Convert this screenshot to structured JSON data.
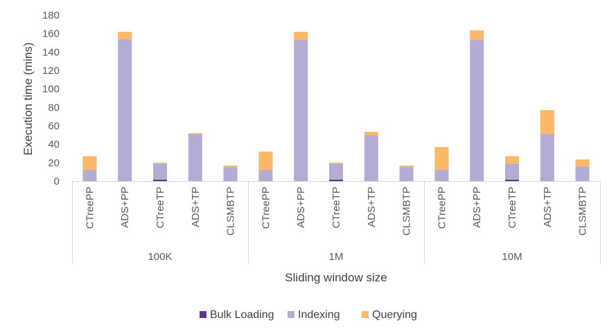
{
  "chart_data": {
    "type": "bar",
    "stacked": true,
    "ylabel": "Execution time (mins)",
    "xlabel": "Sliding window size",
    "ylim": [
      0,
      180
    ],
    "yticks": [
      0,
      20,
      40,
      60,
      80,
      100,
      120,
      140,
      160,
      180
    ],
    "grid": false,
    "legend_position": "bottom",
    "groups": [
      "100K",
      "1M",
      "10M"
    ],
    "categories": [
      "CTreePP",
      "ADS+PP",
      "CTreeTP",
      "ADS+TP",
      "CLSMBTP",
      "CTreePP",
      "ADS+PP",
      "CTreeTP",
      "ADS+TP",
      "CLSMBTP",
      "CTreePP",
      "ADS+PP",
      "CTreeTP",
      "ADS+TP",
      "CLSMBTP"
    ],
    "series": [
      {
        "name": "Bulk Loading",
        "color": "#5b3a8e",
        "values": [
          0,
          0,
          1.5,
          0,
          0,
          0,
          0,
          1.5,
          0,
          0,
          0,
          0,
          1.5,
          0,
          0
        ]
      },
      {
        "name": "Indexing",
        "color": "#b4acd4",
        "values": [
          12,
          154,
          17.5,
          51,
          15.5,
          12,
          153,
          17.5,
          50,
          15.5,
          12,
          153,
          17.5,
          51,
          16
        ]
      },
      {
        "name": "Querying",
        "color": "#fbb869",
        "values": [
          15,
          8,
          1,
          1,
          1.5,
          20,
          9,
          1,
          3.5,
          1.5,
          25,
          10.5,
          8,
          26,
          7.5
        ]
      }
    ]
  }
}
